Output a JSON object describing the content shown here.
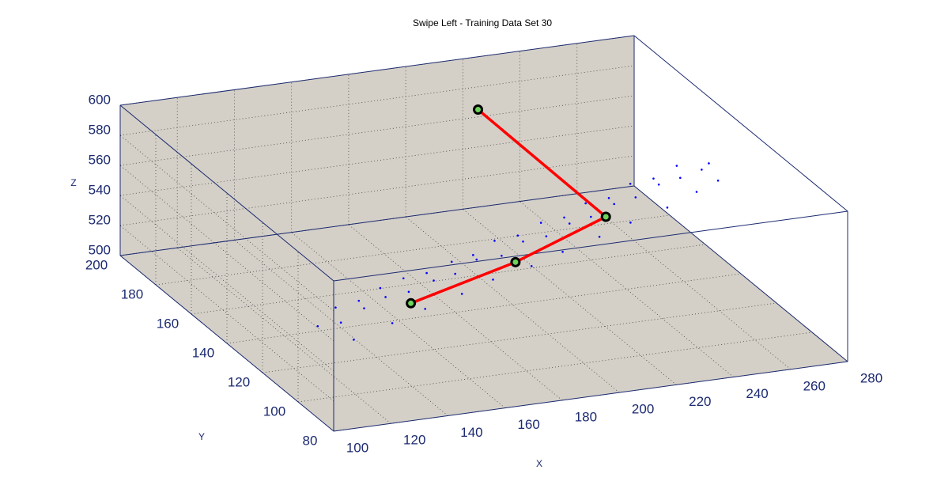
{
  "chart_data": {
    "type": "scatter3d",
    "title": "Swipe Left - Training Data Set 30",
    "xlabel": "X",
    "ylabel": "Y",
    "zlabel": "Z",
    "xlim": [
      100,
      280
    ],
    "ylim": [
      80,
      200
    ],
    "zlim": [
      500,
      600
    ],
    "xticks": [
      100,
      120,
      140,
      160,
      180,
      200,
      220,
      240,
      260,
      280
    ],
    "yticks": [
      80,
      100,
      120,
      140,
      160,
      180,
      200
    ],
    "zticks": [
      500,
      520,
      540,
      560,
      580,
      600
    ],
    "grid": true,
    "pane_color": "#d4d0c8",
    "axis_color": "#1c2a70",
    "series": [
      {
        "color": "#0000ff",
        "marker": "point",
        "x": [
          105,
          110,
          115,
          120,
          125,
          130,
          135,
          140,
          145,
          150,
          155,
          160,
          165,
          170,
          175,
          180,
          185,
          190,
          195,
          200,
          205,
          210,
          215,
          220,
          225,
          230,
          235,
          240,
          245,
          250,
          255,
          260,
          265,
          270,
          275,
          112,
          128,
          142,
          158,
          172,
          188,
          202,
          218,
          232,
          248,
          262,
          272
        ],
        "y": [
          97,
          92,
          103,
          95,
          106,
          99,
          110,
          102,
          113,
          104,
          116,
          108,
          118,
          112,
          122,
          114,
          126,
          118,
          129,
          121,
          132,
          124,
          135,
          128,
          139,
          131,
          142,
          135,
          146,
          138,
          149,
          142,
          152,
          146,
          150,
          88,
          92,
          96,
          101,
          106,
          110,
          115,
          120,
          125,
          130,
          136,
          140
        ],
        "z": [
          552,
          558,
          556,
          562,
          555,
          563,
          557,
          561,
          558,
          564,
          556,
          562,
          559,
          565,
          557,
          563,
          560,
          566,
          558,
          564,
          561,
          567,
          559,
          565,
          562,
          568,
          560,
          566,
          563,
          569,
          561,
          567,
          564,
          566,
          565,
          550,
          553,
          555,
          556,
          557,
          558,
          559,
          560,
          561,
          562,
          563,
          564
        ]
      },
      {
        "color": "#ff0000",
        "marker": "circle",
        "marker_face": "#6fd35a",
        "line": true,
        "x": [
          206,
          219,
          178,
          137
        ],
        "y": [
          169,
          118,
          103,
          96
        ],
        "z": [
          600,
          575,
          570,
          560
        ]
      }
    ]
  }
}
